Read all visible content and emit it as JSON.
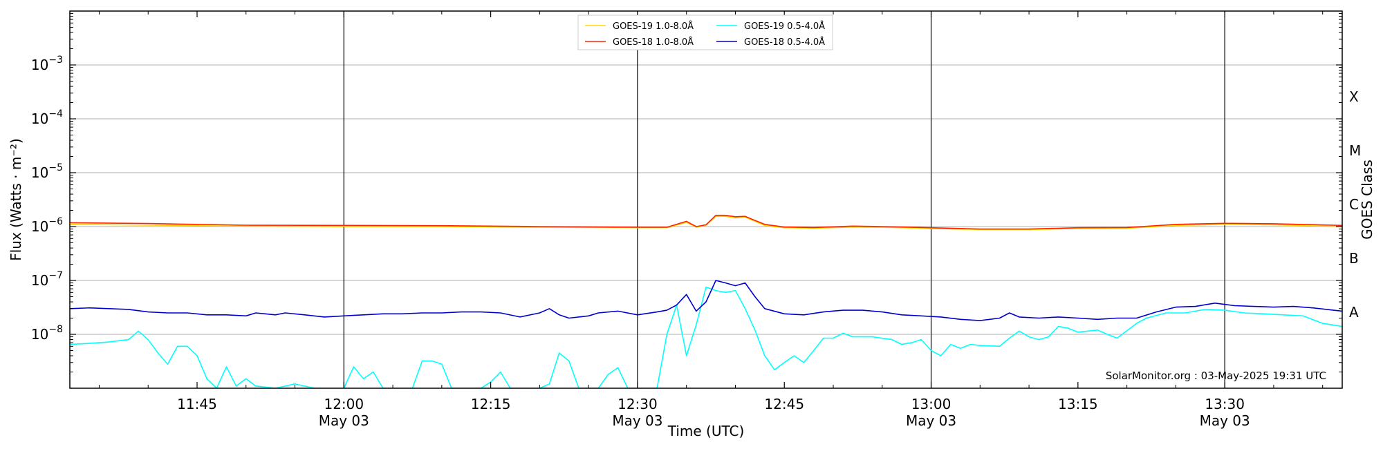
{
  "chart_data": {
    "type": "line",
    "xlabel": "Time (UTC)",
    "ylabel": "Flux (Watts · m⁻²)",
    "y2label": "GOES Class",
    "yscale": "log",
    "ylim": [
      "1.0e-9",
      "1.0e-2"
    ],
    "xlim": [
      "11:32",
      "13:42"
    ],
    "grid": "horizontal",
    "legend_placement": "top-center",
    "credit": "SolarMonitor.org : 03-May-2025 19:31 UTC",
    "x_ticks": [
      {
        "time": "11:45",
        "label": "11:45",
        "date": ""
      },
      {
        "time": "12:00",
        "label": "12:00",
        "date": "May 03"
      },
      {
        "time": "12:15",
        "label": "12:15",
        "date": ""
      },
      {
        "time": "12:30",
        "label": "12:30",
        "date": "May 03"
      },
      {
        "time": "12:45",
        "label": "12:45",
        "date": ""
      },
      {
        "time": "13:00",
        "label": "13:00",
        "date": "May 03"
      },
      {
        "time": "13:15",
        "label": "13:15",
        "date": ""
      },
      {
        "time": "13:30",
        "label": "13:30",
        "date": "May 03"
      }
    ],
    "vlines": [
      "12:00",
      "12:30",
      "13:00",
      "13:30"
    ],
    "y_ticks": [
      {
        "value": "1e-8",
        "base": "10",
        "exp": "−8"
      },
      {
        "value": "1e-7",
        "base": "10",
        "exp": "−7"
      },
      {
        "value": "1e-6",
        "base": "10",
        "exp": "−6"
      },
      {
        "value": "1e-5",
        "base": "10",
        "exp": "−5"
      },
      {
        "value": "1e-4",
        "base": "10",
        "exp": "−4"
      },
      {
        "value": "1e-3",
        "base": "10",
        "exp": "−3"
      }
    ],
    "goes_classes": [
      {
        "label": "A",
        "flux": "1e-8"
      },
      {
        "label": "B",
        "flux": "1e-7"
      },
      {
        "label": "C",
        "flux": "1e-6"
      },
      {
        "label": "M",
        "flux": "1e-5"
      },
      {
        "label": "X",
        "flux": "1e-4"
      }
    ],
    "series": [
      {
        "name": "GOES-19 1.0-8.0Å",
        "color": "#FFD700",
        "points": [
          [
            "11:32",
            "1.10e-6"
          ],
          [
            "11:40",
            "1.06e-6"
          ],
          [
            "11:50",
            "1.02e-6"
          ],
          [
            "12:00",
            "1.00e-6"
          ],
          [
            "12:10",
            "1.00e-6"
          ],
          [
            "12:20",
            "0.97e-6"
          ],
          [
            "12:30",
            "0.95e-6"
          ],
          [
            "12:33",
            "0.95e-6"
          ],
          [
            "12:35",
            "1.20e-6"
          ],
          [
            "12:36",
            "0.98e-6"
          ],
          [
            "12:37",
            "1.05e-6"
          ],
          [
            "12:38",
            "1.55e-6"
          ],
          [
            "12:39",
            "1.55e-6"
          ],
          [
            "12:40",
            "1.45e-6"
          ],
          [
            "12:41",
            "1.50e-6"
          ],
          [
            "12:42",
            "1.25e-6"
          ],
          [
            "12:43",
            "1.05e-6"
          ],
          [
            "12:45",
            "0.95e-6"
          ],
          [
            "12:48",
            "0.93e-6"
          ],
          [
            "12:52",
            "0.98e-6"
          ],
          [
            "12:55",
            "0.97e-6"
          ],
          [
            "13:00",
            "0.92e-6"
          ],
          [
            "13:05",
            "0.88e-6"
          ],
          [
            "13:10",
            "0.88e-6"
          ],
          [
            "13:15",
            "0.92e-6"
          ],
          [
            "13:20",
            "0.93e-6"
          ],
          [
            "13:25",
            "1.05e-6"
          ],
          [
            "13:30",
            "1.10e-6"
          ],
          [
            "13:35",
            "1.08e-6"
          ],
          [
            "13:42",
            "1.00e-6"
          ]
        ]
      },
      {
        "name": "GOES-18 1.0-8.0Å",
        "color": "#FF2200",
        "points": [
          [
            "11:32",
            "1.18e-6"
          ],
          [
            "11:40",
            "1.14e-6"
          ],
          [
            "11:50",
            "1.06e-6"
          ],
          [
            "12:00",
            "1.05e-6"
          ],
          [
            "12:10",
            "1.04e-6"
          ],
          [
            "12:20",
            "1.00e-6"
          ],
          [
            "12:30",
            "0.97e-6"
          ],
          [
            "12:33",
            "0.97e-6"
          ],
          [
            "12:35",
            "1.25e-6"
          ],
          [
            "12:36",
            "1.00e-6"
          ],
          [
            "12:37",
            "1.08e-6"
          ],
          [
            "12:38",
            "1.62e-6"
          ],
          [
            "12:39",
            "1.62e-6"
          ],
          [
            "12:40",
            "1.52e-6"
          ],
          [
            "12:41",
            "1.55e-6"
          ],
          [
            "12:42",
            "1.30e-6"
          ],
          [
            "12:43",
            "1.10e-6"
          ],
          [
            "12:45",
            "0.98e-6"
          ],
          [
            "12:48",
            "0.96e-6"
          ],
          [
            "12:52",
            "1.02e-6"
          ],
          [
            "12:55",
            "1.00e-6"
          ],
          [
            "13:00",
            "0.95e-6"
          ],
          [
            "13:05",
            "0.90e-6"
          ],
          [
            "13:10",
            "0.90e-6"
          ],
          [
            "13:15",
            "0.95e-6"
          ],
          [
            "13:20",
            "0.96e-6"
          ],
          [
            "13:25",
            "1.10e-6"
          ],
          [
            "13:30",
            "1.15e-6"
          ],
          [
            "13:35",
            "1.13e-6"
          ],
          [
            "13:42",
            "1.05e-6"
          ]
        ]
      },
      {
        "name": "GOES-19 0.5-4.0Å",
        "color": "#00FFFF",
        "points": [
          [
            "11:32",
            "6.5e-9"
          ],
          [
            "11:34",
            "6.8e-9"
          ],
          [
            "11:36",
            "7.2e-9"
          ],
          [
            "11:38",
            "8.0e-9"
          ],
          [
            "11:39",
            "1.15e-8"
          ],
          [
            "11:40",
            "8.0e-9"
          ],
          [
            "11:41",
            "4.5e-9"
          ],
          [
            "11:42",
            "2.8e-9"
          ],
          [
            "11:43",
            "6.0e-9"
          ],
          [
            "11:44",
            "6.0e-9"
          ],
          [
            "11:45",
            "4.0e-9"
          ],
          [
            "11:46",
            "1.5e-9"
          ],
          [
            "11:47",
            "1.0e-9"
          ],
          [
            "11:48",
            "2.5e-9"
          ],
          [
            "11:49",
            "1.1e-9"
          ],
          [
            "11:50",
            "1.5e-9"
          ],
          [
            "11:51",
            "1.1e-9"
          ],
          [
            "11:53",
            "1.0e-9"
          ],
          [
            "11:55",
            "1.2e-9"
          ],
          [
            "11:57",
            "1.0e-9"
          ],
          [
            "12:00",
            "1.0e-9"
          ],
          [
            "12:01",
            "2.5e-9"
          ],
          [
            "12:02",
            "1.5e-9"
          ],
          [
            "12:03",
            "2.0e-9"
          ],
          [
            "12:04",
            "1.0e-9"
          ],
          [
            "12:07",
            "1.0e-9"
          ],
          [
            "12:08",
            "3.2e-9"
          ],
          [
            "12:09",
            "3.2e-9"
          ],
          [
            "12:10",
            "2.8e-9"
          ],
          [
            "12:11",
            "1.0e-9"
          ],
          [
            "12:14",
            "1.0e-9"
          ],
          [
            "12:15",
            "1.3e-9"
          ],
          [
            "12:16",
            "2.0e-9"
          ],
          [
            "12:17",
            "1.0e-9"
          ],
          [
            "12:20",
            "1.0e-9"
          ],
          [
            "12:21",
            "1.2e-9"
          ],
          [
            "12:22",
            "4.5e-9"
          ],
          [
            "12:23",
            "3.2e-9"
          ],
          [
            "12:24",
            "1.0e-9"
          ],
          [
            "12:26",
            "1.0e-9"
          ],
          [
            "12:27",
            "1.8e-9"
          ],
          [
            "12:28",
            "2.4e-9"
          ],
          [
            "12:29",
            "1.0e-9"
          ],
          [
            "12:32",
            "1.0e-9"
          ],
          [
            "12:33",
            "1.0e-8"
          ],
          [
            "12:34",
            "3.5e-8"
          ],
          [
            "12:35",
            "4.0e-9"
          ],
          [
            "12:36",
            "1.5e-8"
          ],
          [
            "12:37",
            "7.5e-8"
          ],
          [
            "12:38",
            "6.5e-8"
          ],
          [
            "12:39",
            "6.0e-8"
          ],
          [
            "12:40",
            "6.5e-8"
          ],
          [
            "12:41",
            "3.0e-8"
          ],
          [
            "12:42",
            "1.2e-8"
          ],
          [
            "12:43",
            "4.0e-9"
          ],
          [
            "12:44",
            "2.2e-9"
          ],
          [
            "12:45",
            "3.0e-9"
          ],
          [
            "12:46",
            "4.0e-9"
          ],
          [
            "12:47",
            "3.0e-9"
          ],
          [
            "12:48",
            "5.0e-9"
          ],
          [
            "12:49",
            "8.5e-9"
          ],
          [
            "12:50",
            "8.5e-9"
          ],
          [
            "12:51",
            "1.05e-8"
          ],
          [
            "12:52",
            "9.0e-9"
          ],
          [
            "12:54",
            "9.0e-9"
          ],
          [
            "12:56",
            "8.0e-9"
          ],
          [
            "12:57",
            "6.5e-9"
          ],
          [
            "12:58",
            "7.0e-9"
          ],
          [
            "12:59",
            "8.0e-9"
          ],
          [
            "13:00",
            "5.0e-9"
          ],
          [
            "13:01",
            "4.0e-9"
          ],
          [
            "13:02",
            "6.5e-9"
          ],
          [
            "13:03",
            "5.5e-9"
          ],
          [
            "13:04",
            "6.5e-9"
          ],
          [
            "13:05",
            "6.2e-9"
          ],
          [
            "13:07",
            "6.0e-9"
          ],
          [
            "13:08",
            "8.5e-9"
          ],
          [
            "13:09",
            "1.15e-8"
          ],
          [
            "13:10",
            "9.0e-9"
          ],
          [
            "13:11",
            "8.0e-9"
          ],
          [
            "13:12",
            "9.0e-9"
          ],
          [
            "13:13",
            "1.4e-8"
          ],
          [
            "13:14",
            "1.3e-8"
          ],
          [
            "13:15",
            "1.1e-8"
          ],
          [
            "13:17",
            "1.2e-8"
          ],
          [
            "13:18",
            "1.0e-8"
          ],
          [
            "13:19",
            "8.5e-9"
          ],
          [
            "13:21",
            "1.6e-8"
          ],
          [
            "13:22",
            "2.0e-8"
          ],
          [
            "13:24",
            "2.5e-8"
          ],
          [
            "13:26",
            "2.5e-8"
          ],
          [
            "13:28",
            "2.9e-8"
          ],
          [
            "13:30",
            "2.8e-8"
          ],
          [
            "13:32",
            "2.5e-8"
          ],
          [
            "13:34",
            "2.4e-8"
          ],
          [
            "13:36",
            "2.3e-8"
          ],
          [
            "13:38",
            "2.2e-8"
          ],
          [
            "13:40",
            "1.6e-8"
          ],
          [
            "13:42",
            "1.4e-8"
          ]
        ]
      },
      {
        "name": "GOES-18 0.5-4.0Å",
        "color": "#0000CC",
        "points": [
          [
            "11:32",
            "3.0e-8"
          ],
          [
            "11:34",
            "3.1e-8"
          ],
          [
            "11:36",
            "3.0e-8"
          ],
          [
            "11:38",
            "2.9e-8"
          ],
          [
            "11:40",
            "2.6e-8"
          ],
          [
            "11:42",
            "2.5e-8"
          ],
          [
            "11:44",
            "2.5e-8"
          ],
          [
            "11:46",
            "2.3e-8"
          ],
          [
            "11:48",
            "2.3e-8"
          ],
          [
            "11:50",
            "2.2e-8"
          ],
          [
            "11:51",
            "2.5e-8"
          ],
          [
            "11:53",
            "2.3e-8"
          ],
          [
            "11:54",
            "2.5e-8"
          ],
          [
            "11:56",
            "2.3e-8"
          ],
          [
            "11:58",
            "2.1e-8"
          ],
          [
            "12:00",
            "2.2e-8"
          ],
          [
            "12:02",
            "2.3e-8"
          ],
          [
            "12:04",
            "2.4e-8"
          ],
          [
            "12:06",
            "2.4e-8"
          ],
          [
            "12:08",
            "2.5e-8"
          ],
          [
            "12:10",
            "2.5e-8"
          ],
          [
            "12:12",
            "2.6e-8"
          ],
          [
            "12:14",
            "2.6e-8"
          ],
          [
            "12:16",
            "2.5e-8"
          ],
          [
            "12:18",
            "2.1e-8"
          ],
          [
            "12:20",
            "2.5e-8"
          ],
          [
            "12:21",
            "3.0e-8"
          ],
          [
            "12:22",
            "2.3e-8"
          ],
          [
            "12:23",
            "2.0e-8"
          ],
          [
            "12:25",
            "2.2e-8"
          ],
          [
            "12:26",
            "2.5e-8"
          ],
          [
            "12:28",
            "2.7e-8"
          ],
          [
            "12:30",
            "2.3e-8"
          ],
          [
            "12:32",
            "2.6e-8"
          ],
          [
            "12:33",
            "2.8e-8"
          ],
          [
            "12:34",
            "3.5e-8"
          ],
          [
            "12:35",
            "5.5e-8"
          ],
          [
            "12:36",
            "2.7e-8"
          ],
          [
            "12:37",
            "4.0e-8"
          ],
          [
            "12:38",
            "1.0e-7"
          ],
          [
            "12:39",
            "9.0e-8"
          ],
          [
            "12:40",
            "8.0e-8"
          ],
          [
            "12:41",
            "9.0e-8"
          ],
          [
            "12:42",
            "5.0e-8"
          ],
          [
            "12:43",
            "3.0e-8"
          ],
          [
            "12:45",
            "2.4e-8"
          ],
          [
            "12:47",
            "2.3e-8"
          ],
          [
            "12:49",
            "2.6e-8"
          ],
          [
            "12:51",
            "2.8e-8"
          ],
          [
            "12:53",
            "2.8e-8"
          ],
          [
            "12:55",
            "2.6e-8"
          ],
          [
            "12:57",
            "2.3e-8"
          ],
          [
            "12:59",
            "2.2e-8"
          ],
          [
            "13:01",
            "2.1e-8"
          ],
          [
            "13:03",
            "1.9e-8"
          ],
          [
            "13:05",
            "1.8e-8"
          ],
          [
            "13:07",
            "2.0e-8"
          ],
          [
            "13:08",
            "2.5e-8"
          ],
          [
            "13:09",
            "2.1e-8"
          ],
          [
            "13:11",
            "2.0e-8"
          ],
          [
            "13:13",
            "2.1e-8"
          ],
          [
            "13:15",
            "2.0e-8"
          ],
          [
            "13:17",
            "1.9e-8"
          ],
          [
            "13:19",
            "2.0e-8"
          ],
          [
            "13:21",
            "2.0e-8"
          ],
          [
            "13:23",
            "2.6e-8"
          ],
          [
            "13:25",
            "3.2e-8"
          ],
          [
            "13:27",
            "3.3e-8"
          ],
          [
            "13:29",
            "3.8e-8"
          ],
          [
            "13:31",
            "3.4e-8"
          ],
          [
            "13:33",
            "3.3e-8"
          ],
          [
            "13:35",
            "3.2e-8"
          ],
          [
            "13:37",
            "3.3e-8"
          ],
          [
            "13:39",
            "3.1e-8"
          ],
          [
            "13:42",
            "2.7e-8"
          ]
        ]
      }
    ],
    "legend_order": [
      0,
      1,
      2,
      3
    ]
  }
}
